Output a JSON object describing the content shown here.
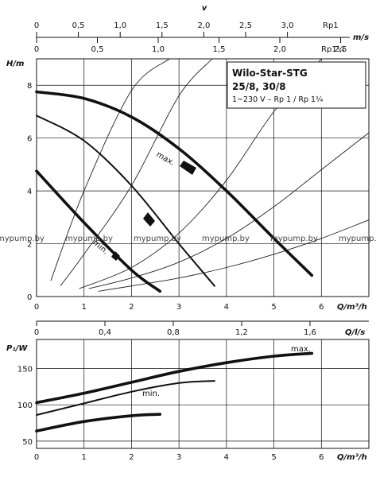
{
  "chart_data": [
    {
      "type": "line",
      "title": "Wilo-Star-STG",
      "subtitle_models": "25/8, 30/8",
      "subtitle_supply": "1~230 V – Rp 1 / Rp 1¼",
      "ylabel": "H/m",
      "xlabel": "Q/m³/h",
      "xlim": [
        0,
        7
      ],
      "ylim": [
        0,
        9
      ],
      "x_ticks": [
        0,
        1,
        2,
        3,
        4,
        5,
        6
      ],
      "y_ticks": [
        0,
        2,
        4,
        6,
        8
      ],
      "series": [
        {
          "name": "max.",
          "x": [
            0,
            1,
            2,
            3,
            4,
            5,
            5.8
          ],
          "y": [
            7.75,
            7.5,
            6.8,
            5.6,
            4.0,
            2.2,
            0.8
          ]
        },
        {
          "name": "",
          "x": [
            0,
            1,
            2,
            3,
            3.75
          ],
          "y": [
            6.85,
            5.9,
            4.2,
            2.0,
            0.4
          ]
        },
        {
          "name": "min.",
          "x": [
            0,
            1,
            2,
            2.6
          ],
          "y": [
            4.75,
            2.8,
            1.0,
            0.2
          ]
        }
      ],
      "system_curves": [
        {
          "x": [
            0.3,
            1,
            2,
            2.8
          ],
          "y": [
            0.6,
            4.0,
            7.8,
            9.0
          ]
        },
        {
          "x": [
            0.5,
            1,
            2,
            3,
            3.7
          ],
          "y": [
            0.4,
            1.6,
            4.2,
            7.6,
            9.0
          ]
        },
        {
          "x": [
            0.9,
            2,
            3,
            4,
            5,
            6
          ],
          "y": [
            0.3,
            1.1,
            2.4,
            4.4,
            7.0,
            9.0
          ]
        },
        {
          "x": [
            1.1,
            2,
            3,
            4,
            5,
            6,
            7
          ],
          "y": [
            0.3,
            0.7,
            1.3,
            2.2,
            3.4,
            4.8,
            6.2
          ]
        },
        {
          "x": [
            1.3,
            2,
            3,
            4,
            5,
            6,
            7
          ],
          "y": [
            0.2,
            0.4,
            0.7,
            1.1,
            1.6,
            2.2,
            2.9
          ]
        }
      ]
    },
    {
      "type": "line",
      "ylabel": "P₁/W",
      "xlabel": "Q/m³/h",
      "xlim": [
        0,
        7
      ],
      "ylim": [
        40,
        190
      ],
      "x_ticks": [
        0,
        1,
        2,
        3,
        4,
        5,
        6
      ],
      "y_ticks": [
        50,
        100,
        150
      ],
      "series": [
        {
          "name": "max.",
          "x": [
            0,
            1,
            2,
            3,
            4,
            5,
            5.8
          ],
          "y": [
            103,
            116,
            131,
            146,
            158,
            167,
            171
          ]
        },
        {
          "name": "",
          "x": [
            0,
            1,
            2,
            3,
            3.75
          ],
          "y": [
            86,
            102,
            118,
            130,
            133
          ]
        },
        {
          "name": "min.",
          "x": [
            0,
            1,
            2,
            2.6
          ],
          "y": [
            64,
            77,
            85,
            87
          ]
        }
      ]
    }
  ],
  "top_scales": {
    "v_label": "v",
    "v_unit": "m/s",
    "rp1_label": "Rp1",
    "rp1_ticks": [
      "0",
      "0,5",
      "1,0",
      "1,5",
      "2,0",
      "2,5",
      "3,0"
    ],
    "rp114_label": "Rp1¼",
    "rp114_ticks": [
      "0",
      "0,5",
      "1,0",
      "1,5",
      "2,0",
      "2,5"
    ]
  },
  "mid_scale": {
    "unit": "Q/l/s",
    "ticks": [
      "0",
      "0,4",
      "0,8",
      "1,2",
      "1,6"
    ]
  },
  "watermark": {
    "text": "mypump.by",
    "count": 6
  },
  "colors": {
    "ink": "#111111",
    "background": "#ffffff"
  }
}
